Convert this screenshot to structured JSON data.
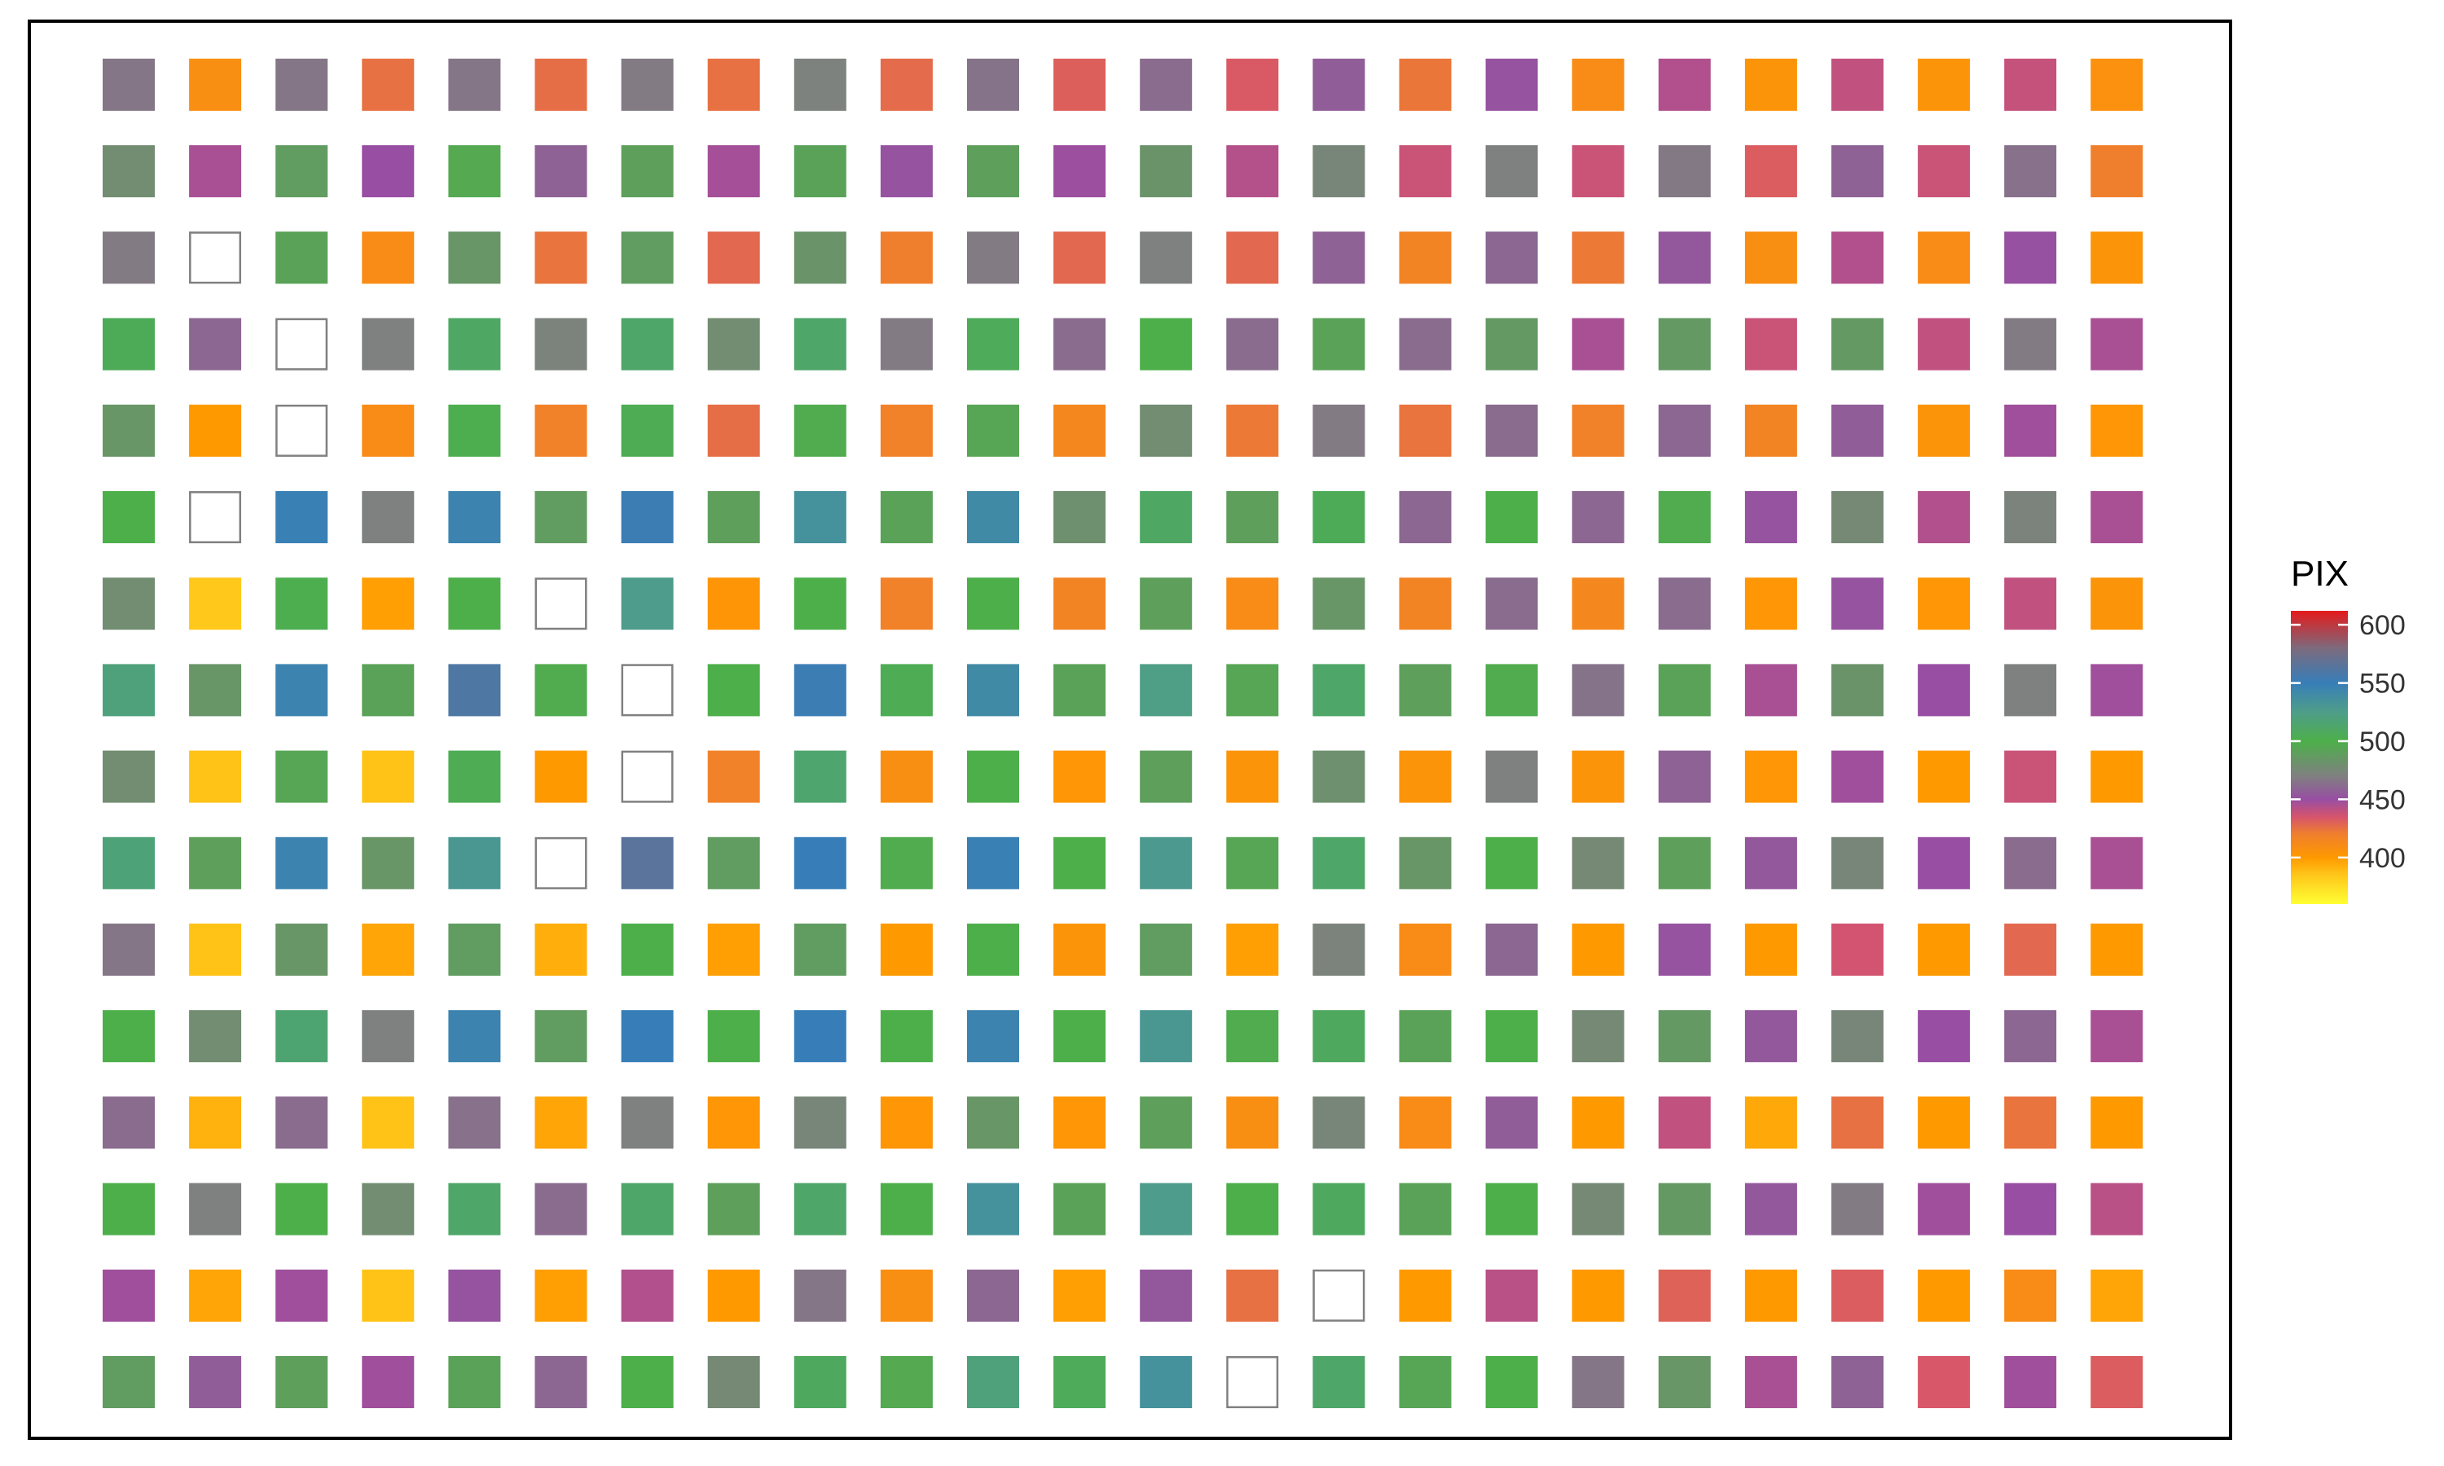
{
  "chart_data": {
    "type": "heatmap",
    "title": "",
    "xlabel": "",
    "ylabel": "",
    "rows": 16,
    "cols": 24,
    "legend": {
      "title": "PIX",
      "ticks": [
        400,
        450,
        500,
        550,
        600
      ],
      "range": [
        360,
        612
      ],
      "colors": [
        {
          "v": 360,
          "c": "#ffff33"
        },
        {
          "v": 385,
          "c": "#ffc61a"
        },
        {
          "v": 400,
          "c": "#ff9900"
        },
        {
          "v": 420,
          "c": "#f07f2d"
        },
        {
          "v": 435,
          "c": "#d6546d"
        },
        {
          "v": 450,
          "c": "#984ea3"
        },
        {
          "v": 470,
          "c": "#7f8080"
        },
        {
          "v": 500,
          "c": "#4daf4a"
        },
        {
          "v": 525,
          "c": "#4f9d89"
        },
        {
          "v": 550,
          "c": "#377eb8"
        },
        {
          "v": 580,
          "c": "#7d6a7d"
        },
        {
          "v": 612,
          "c": "#e41a1c"
        }
      ],
      "placement": "right"
    },
    "values": [
      [
        466,
        408,
        466,
        425,
        466,
        426,
        468,
        425,
        471,
        427,
        465,
        431,
        462,
        433,
        456,
        423,
        452,
        410,
        444,
        404,
        440,
        404,
        439,
        406
      ],
      [
        478,
        446,
        488,
        450,
        496,
        458,
        490,
        447,
        492,
        452,
        490,
        449,
        482,
        443,
        474,
        438,
        470,
        438,
        467,
        432,
        458,
        438,
        464,
        420
      ],
      [
        468,
        null,
        492,
        410,
        484,
        424,
        488,
        428,
        482,
        420,
        468,
        428,
        470,
        428,
        458,
        416,
        460,
        422,
        454,
        408,
        444,
        410,
        451,
        404
      ],
      [
        505,
        460,
        null,
        470,
        510,
        472,
        512,
        478,
        512,
        468,
        506,
        462,
        500,
        462,
        492,
        462,
        486,
        446,
        486,
        438,
        486,
        440,
        468,
        446
      ],
      [
        484,
        400,
        null,
        410,
        502,
        418,
        504,
        426,
        498,
        418,
        494,
        414,
        478,
        422,
        468,
        424,
        462,
        418,
        460,
        416,
        456,
        404,
        448,
        402
      ],
      [
        500,
        null,
        548,
        470,
        545,
        488,
        552,
        490,
        535,
        492,
        540,
        480,
        510,
        490,
        505,
        460,
        500,
        460,
        498,
        452,
        476,
        444,
        472,
        446
      ],
      [
        478,
        384,
        502,
        398,
        500,
        null,
        526,
        403,
        500,
        418,
        500,
        416,
        490,
        410,
        484,
        416,
        462,
        414,
        462,
        402,
        452,
        402,
        440,
        404
      ],
      [
        520,
        484,
        545,
        492,
        560,
        498,
        null,
        500,
        552,
        504,
        540,
        492,
        524,
        494,
        512,
        490,
        498,
        465,
        492,
        446,
        482,
        450,
        470,
        448
      ],
      [
        478,
        386,
        494,
        386,
        504,
        400,
        null,
        418,
        514,
        408,
        500,
        402,
        490,
        404,
        480,
        404,
        470,
        404,
        458,
        402,
        448,
        400,
        438,
        400
      ],
      [
        518,
        490,
        545,
        484,
        530,
        null,
        565,
        488,
        550,
        498,
        548,
        500,
        528,
        494,
        512,
        484,
        500,
        476,
        490,
        454,
        474,
        450,
        462,
        446
      ],
      [
        466,
        386,
        484,
        396,
        488,
        393,
        500,
        398,
        488,
        400,
        500,
        404,
        488,
        398,
        472,
        410,
        460,
        400,
        452,
        400,
        436,
        400,
        428,
        400
      ],
      [
        500,
        478,
        515,
        470,
        545,
        488,
        550,
        500,
        550,
        500,
        545,
        500,
        530,
        498,
        508,
        492,
        500,
        476,
        486,
        454,
        474,
        450,
        460,
        446
      ],
      [
        462,
        392,
        462,
        386,
        464,
        396,
        470,
        402,
        474,
        402,
        484,
        402,
        490,
        408,
        474,
        410,
        456,
        400,
        440,
        395,
        425,
        400,
        424,
        400
      ],
      [
        500,
        470,
        500,
        478,
        512,
        462,
        512,
        490,
        512,
        500,
        535,
        492,
        526,
        500,
        508,
        492,
        500,
        476,
        486,
        454,
        468,
        448,
        450,
        442
      ],
      [
        448,
        396,
        448,
        386,
        452,
        398,
        444,
        400,
        466,
        408,
        460,
        398,
        454,
        425,
        null,
        400,
        442,
        400,
        430,
        400,
        432,
        400,
        410,
        396
      ],
      [
        488,
        456,
        490,
        448,
        492,
        460,
        500,
        476,
        508,
        496,
        520,
        506,
        535,
        null,
        512,
        494,
        500,
        466,
        484,
        446,
        458,
        434,
        448,
        432
      ]
    ]
  }
}
